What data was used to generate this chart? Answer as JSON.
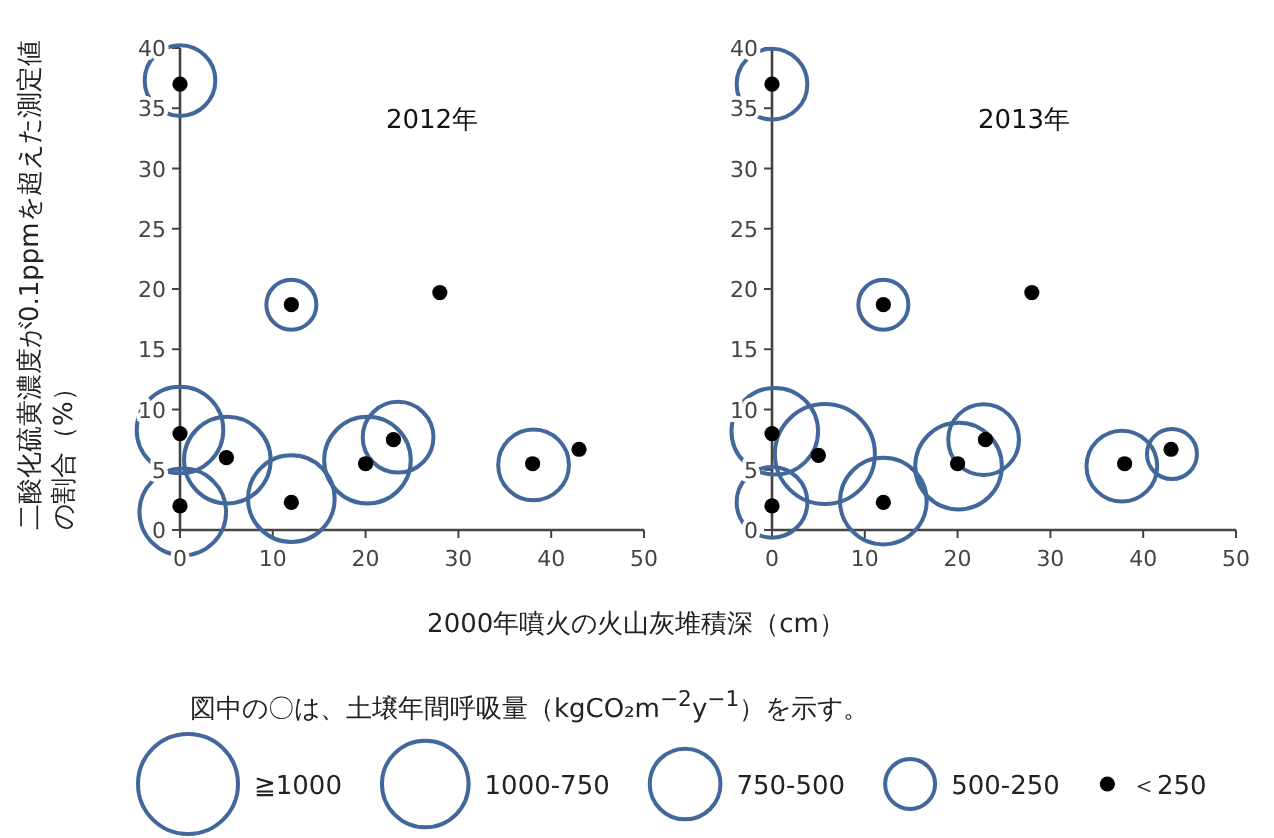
{
  "chart_data": [
    {
      "type": "bubble",
      "title": "2012年",
      "ylabel": "二酸化硫黄濃度が0.1ppmを超えた測定値の割合（%）",
      "xlabel": "2000年噴火の火山灰堆積深（cm）",
      "annotations": [
        "図中の〇は、土壌年間呼吸量（kgCO₂m$^{−2}$y$^{−1}$）を示す。"
      ],
      "legend": "bottom",
      "marker": "circle",
      "xlim": [
        0,
        50
      ],
      "ylim": [
        0,
        40
      ],
      "xticks": [
        0,
        10,
        20,
        30,
        40,
        50
      ],
      "yticks": [
        0,
        5,
        10,
        15,
        20,
        25,
        30,
        35,
        40
      ],
      "size_legend": [
        {
          "value": 1000,
          "label": "≧1000"
        },
        {
          "value": 750,
          "label": "1000-750"
        },
        {
          "value": 500,
          "label": "750-500"
        },
        {
          "value": 250,
          "label": "500-250"
        }
      ],
      "series": [
        {
          "color": "#41679b",
          "x": [
            0,
            5.1,
            0.3,
            12,
            20.2,
            0,
            23.5,
            38.1,
            12
          ],
          "values": [
            8.3,
            5.8,
            1.5,
            2.6,
            5.8,
            37.3,
            7.7,
            5.4,
            18.7
          ],
          "sizes": [
            750,
            750,
            750,
            750,
            750,
            500,
            500,
            500,
            250
          ]
        },
        {
          "name": "＜250",
          "type": "scatter",
          "color": "#000000",
          "x": [
            0,
            12,
            28,
            0,
            5,
            0,
            12,
            20,
            23,
            38,
            43
          ],
          "values": [
            37,
            18.7,
            19.7,
            8,
            6,
            2,
            2.3,
            5.5,
            7.5,
            5.5,
            6.7
          ]
        }
      ]
    },
    {
      "type": "bubble",
      "title": "2013年",
      "marker": "circle",
      "xlim": [
        0,
        50
      ],
      "ylim": [
        0,
        40
      ],
      "xticks": [
        0,
        10,
        20,
        30,
        40,
        50
      ],
      "yticks": [
        0,
        5,
        10,
        15,
        20,
        25,
        30,
        35,
        40
      ],
      "series": [
        {
          "color": "#41679b",
          "x": [
            5.7,
            0.3,
            12,
            20.1,
            0,
            0,
            22.8,
            37.7,
            12,
            43.1
          ],
          "values": [
            6.3,
            8.2,
            2.4,
            5.3,
            37,
            2.3,
            7.5,
            5.3,
            18.7,
            6.3
          ],
          "sizes": [
            1,
            0.75,
            0.75,
            0.75,
            0.5,
            0.5,
            0.5,
            0.5,
            0.25,
            0.25
          ]
        },
        {
          "type": "scatter",
          "color": "#000000",
          "x": [
            0,
            12,
            28,
            0,
            5,
            0,
            12,
            20,
            23,
            38,
            43
          ],
          "values": [
            37,
            18.7,
            19.7,
            8,
            6.2,
            2,
            2.3,
            5.5,
            7.5,
            5.5,
            6.7
          ]
        }
      ]
    }
  ]
}
